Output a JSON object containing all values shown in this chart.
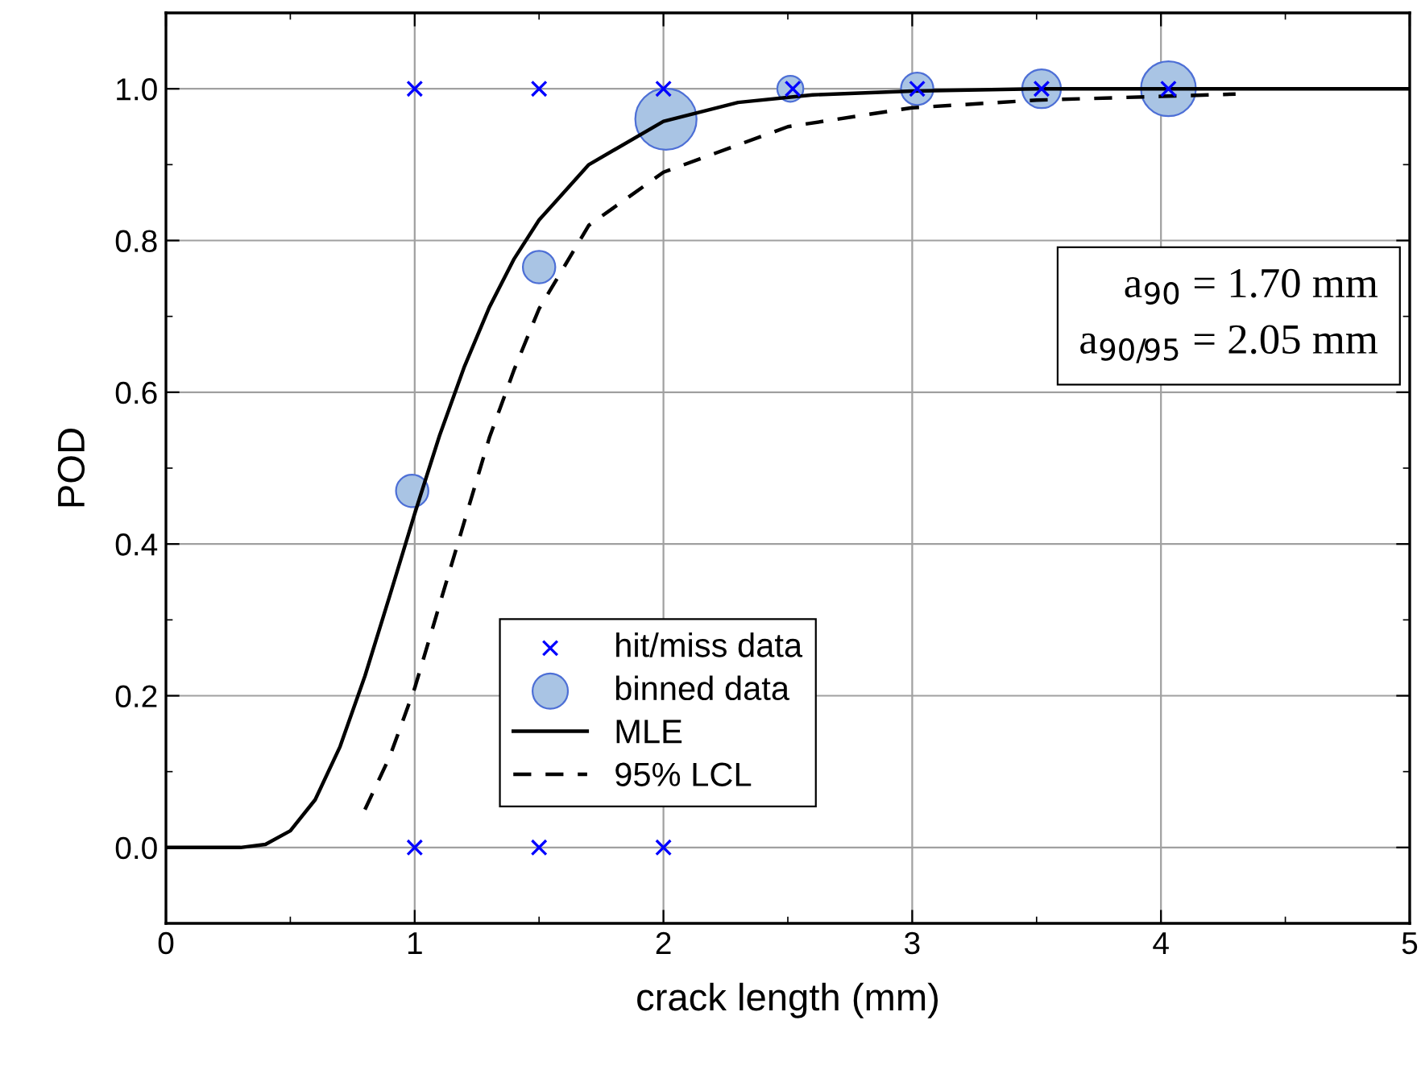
{
  "chart_data": {
    "type": "scatter",
    "xlabel": "crack length (mm)",
    "ylabel": "POD",
    "xlim": [
      0,
      5
    ],
    "ylim": [
      -0.1,
      1.1
    ],
    "xticks": [
      0,
      1,
      2,
      3,
      4,
      5
    ],
    "yticks": [
      {
        "value": 0,
        "label": "0.0"
      },
      {
        "value": 0.2,
        "label": "0.2"
      },
      {
        "value": 0.4,
        "label": "0.4"
      },
      {
        "value": 0.6,
        "label": "0.6"
      },
      {
        "value": 0.8,
        "label": "0.8"
      },
      {
        "value": 1,
        "label": "1.0"
      }
    ],
    "grid": true,
    "legend": "bottom",
    "annotations": [
      "a$_{90}$ = 1.70 mm",
      "a$_{90/95}$ = 2.05 mm"
    ],
    "series": [
      {
        "name": "hit/miss data",
        "marker": "cross",
        "color": "#0000ff",
        "x": [
          1,
          1.5,
          2,
          2.52,
          3.02,
          3.52,
          4.03,
          1,
          1.5,
          2
        ],
        "values": [
          1,
          1,
          1,
          1,
          1,
          1,
          1,
          0,
          0,
          0
        ]
      },
      {
        "name": "binned data",
        "type": "bubble",
        "marker": "circle",
        "color": "#a9c4e4",
        "x": [
          0.99,
          1.5,
          2.01,
          2.51,
          3.02,
          3.52,
          4.03
        ],
        "values": [
          0.47,
          0.765,
          0.96,
          1.0,
          1.0,
          1.0,
          1.0
        ],
        "sizes": [
          0.28,
          0.28,
          1,
          0.18,
          0.28,
          0.4,
          0.8
        ]
      },
      {
        "name": "MLE",
        "type": "line",
        "marker": "none",
        "line_style": "solid",
        "color": "#000000",
        "x": [
          0,
          0.3,
          0.4,
          0.5,
          0.6,
          0.7,
          0.8,
          0.9,
          1.0,
          1.1,
          1.2,
          1.3,
          1.4,
          1.5,
          1.7,
          2.0,
          2.3,
          2.6,
          3.0,
          3.5,
          5.0
        ],
        "values": [
          0,
          0.0,
          0.004,
          0.022,
          0.063,
          0.133,
          0.226,
          0.332,
          0.44,
          0.543,
          0.634,
          0.712,
          0.776,
          0.827,
          0.9,
          0.957,
          0.982,
          0.992,
          0.997,
          1.0,
          1.0
        ]
      },
      {
        "name": "95% LCL",
        "type": "line",
        "marker": "none",
        "line_style": "dashed",
        "color": "#000000",
        "x": [
          0.8,
          0.9,
          1.0,
          1.1,
          1.2,
          1.3,
          1.4,
          1.5,
          1.7,
          2.0,
          2.5,
          3.0,
          3.5,
          4.0,
          4.3
        ],
        "values": [
          0.05,
          0.12,
          0.21,
          0.32,
          0.43,
          0.54,
          0.63,
          0.71,
          0.82,
          0.89,
          0.95,
          0.975,
          0.985,
          0.99,
          0.993
        ]
      }
    ]
  }
}
